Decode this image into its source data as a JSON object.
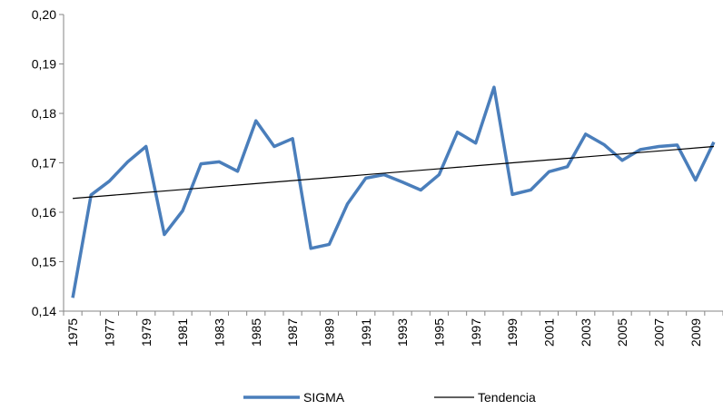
{
  "chart_data": {
    "type": "line",
    "categories": [
      "1975",
      null,
      "1977",
      null,
      "1979",
      null,
      "1981",
      null,
      "1983",
      null,
      "1985",
      null,
      "1987",
      null,
      "1989",
      null,
      "1991",
      null,
      "1993",
      null,
      "1995",
      null,
      "1997",
      null,
      "1999",
      null,
      "2001",
      null,
      "2003",
      null,
      "2005",
      null,
      "2007",
      null,
      "2009",
      null
    ],
    "series": [
      {
        "name": "SIGMA",
        "color": "#4a7ebb",
        "values": [
          0.1427,
          0.1635,
          0.1663,
          0.1702,
          0.1733,
          0.1555,
          0.1603,
          0.1698,
          0.1702,
          0.1683,
          0.1785,
          0.1733,
          0.1749,
          0.1527,
          0.1535,
          0.1617,
          0.1669,
          0.1676,
          0.1661,
          0.1645,
          0.1676,
          0.1762,
          0.174,
          0.1853,
          0.1636,
          0.1645,
          0.1682,
          0.1692,
          0.1758,
          0.1737,
          0.1705,
          0.1727,
          0.1733,
          0.1736,
          0.1665,
          0.1742
        ]
      },
      {
        "name": "Tendencia",
        "color": "#000000",
        "values": [
          0.1628,
          0.1631,
          0.1634,
          0.1637,
          0.164,
          0.1643,
          0.1646,
          0.1649,
          0.1652,
          0.1655,
          0.1658,
          0.1661,
          0.1664,
          0.1667,
          0.167,
          0.1673,
          0.1676,
          0.1679,
          0.1682,
          0.1685,
          0.1688,
          0.1691,
          0.1694,
          0.1697,
          0.17,
          0.1703,
          0.1706,
          0.1709,
          0.1712,
          0.1715,
          0.1718,
          0.1721,
          0.1724,
          0.1727,
          0.173,
          0.1733
        ]
      }
    ],
    "ylim": [
      0.14,
      0.2
    ],
    "yticks": [
      {
        "value": 0.14,
        "label": "0,14"
      },
      {
        "value": 0.15,
        "label": "0,15"
      },
      {
        "value": 0.16,
        "label": "0,16"
      },
      {
        "value": 0.17,
        "label": "0,17"
      },
      {
        "value": 0.18,
        "label": "0,18"
      },
      {
        "value": 0.19,
        "label": "0,19"
      },
      {
        "value": 0.2,
        "label": "0,20"
      }
    ],
    "grid": false,
    "legend": "bottom"
  }
}
